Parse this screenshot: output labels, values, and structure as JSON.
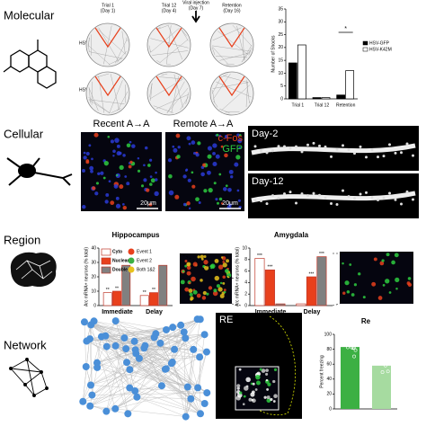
{
  "rows": [
    "Molecular",
    "Cellular",
    "Region",
    "Network"
  ],
  "molecular": {
    "stages": [
      {
        "name": "Trial 1",
        "day": "(Day 1)"
      },
      {
        "name": "Trial 12",
        "day": "(Day 4)"
      },
      {
        "name": "Retention",
        "day": "(Day 16)"
      }
    ],
    "injection": {
      "name": "Viral injection",
      "day": "(Day 7)"
    },
    "groups": [
      "HSV-GFP",
      "HSV-K42M"
    ]
  },
  "cellular": {
    "panels": [
      "Recent A→A",
      "Remote A→A"
    ],
    "stains": [
      "c-Fos",
      "GFP"
    ],
    "scale_bar": "20μm",
    "days": [
      "Day-2",
      "Day-12"
    ]
  },
  "network": {
    "image_label": "RE"
  },
  "chart_data": [
    {
      "type": "bar",
      "ylabel": "Number of Shocks",
      "categories": [
        "Trial 1",
        "Trial 12",
        "Retention"
      ],
      "series": [
        {
          "name": "HSV-GFP",
          "color": "#000000",
          "values": [
            14,
            0.5,
            1.5
          ]
        },
        {
          "name": "HSV-K42M",
          "color": "#ffffff",
          "values": [
            21,
            0.5,
            11
          ]
        }
      ],
      "edgecolor": "#000000",
      "ylim": [
        0,
        35
      ],
      "yticks": [
        0,
        5,
        10,
        15,
        20,
        25,
        30,
        35
      ],
      "annotation": "*"
    },
    {
      "type": "bar",
      "title": "Hippocampus",
      "ylabel": "Arc mRNA+ neurons (% total)",
      "categories": [
        "Immediate",
        "Delay"
      ],
      "series": [
        {
          "name": "Cyto",
          "color": "#ffffff",
          "values": [
            9,
            7
          ],
          "significance": [
            "**",
            "**"
          ]
        },
        {
          "name": "Nuclear",
          "color": "#e8401c",
          "values": [
            10,
            9
          ],
          "significance": [
            "**",
            "**"
          ]
        },
        {
          "name": "Double",
          "color": "#808080",
          "values": [
            28,
            28
          ]
        }
      ],
      "legend_notes": [
        "Event 1",
        "Event 2",
        "Both 1&2"
      ],
      "edgecolor": "#c0392b",
      "ylim": [
        0,
        40
      ],
      "yticks": [
        0,
        10,
        20,
        30,
        40
      ]
    },
    {
      "type": "bar",
      "title": "Amygdala",
      "ylabel": "Arc mRNA+ neurons (% total)",
      "categories": [
        "Immediate",
        "Delay"
      ],
      "series": [
        {
          "name": "Cyto",
          "color": "#ffffff",
          "values": [
            8.2,
            0.3
          ],
          "significance": [
            "***",
            null
          ]
        },
        {
          "name": "Nuclear",
          "color": "#e8401c",
          "values": [
            6.2,
            5
          ],
          "significance": [
            "***",
            "***"
          ]
        },
        {
          "name": "Double",
          "color": "#808080",
          "values": [
            0.3,
            8.5
          ],
          "significance": [
            null,
            "***"
          ]
        }
      ],
      "edgecolor": "#c0392b",
      "ylim": [
        0,
        10
      ],
      "yticks": [
        0,
        2,
        4,
        6,
        8,
        10
      ]
    },
    {
      "type": "bar",
      "title": "Re",
      "ylabel": "Percent freezing",
      "categories": [
        null,
        null
      ],
      "values": [
        83,
        58
      ],
      "colors": [
        "#3cb043",
        "#a6dba0"
      ],
      "ylim": [
        0,
        100
      ],
      "yticks": [
        0,
        20,
        40,
        60,
        80,
        100
      ]
    }
  ]
}
